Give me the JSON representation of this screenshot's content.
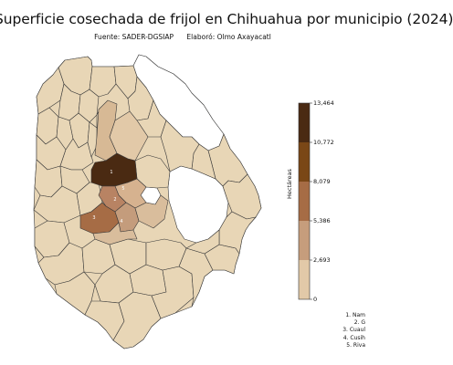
{
  "title": "Superficie cosechada de frijol en Chihuahua por municipio (2024)",
  "credits": {
    "source": "Fuente: SADER-DGSIAP",
    "author": "Elaboró: Olmo Axayacatl"
  },
  "colorbar": {
    "label": "Hectáreas",
    "ticks": [
      "13,464",
      "10,772",
      "8,079",
      "5,386",
      "2,693",
      "0"
    ],
    "colors": [
      "#4a2a12",
      "#7a4716",
      "#a66c45",
      "#c69d7c",
      "#e2c9a8"
    ]
  },
  "map_markers": [
    {
      "id": "1",
      "label": "1"
    },
    {
      "id": "2",
      "label": "2"
    },
    {
      "id": "3",
      "label": "3"
    },
    {
      "id": "4",
      "label": "4"
    },
    {
      "id": "5",
      "label": "5"
    }
  ],
  "legend": [
    "1. Nam",
    "2. G",
    "3. Cuaul",
    "4. Cusih",
    "5. Riva"
  ],
  "colors": {
    "base_fill": "#e8d6b6",
    "no_data_fill": "#ffffff",
    "border": "#3a3a3a"
  }
}
